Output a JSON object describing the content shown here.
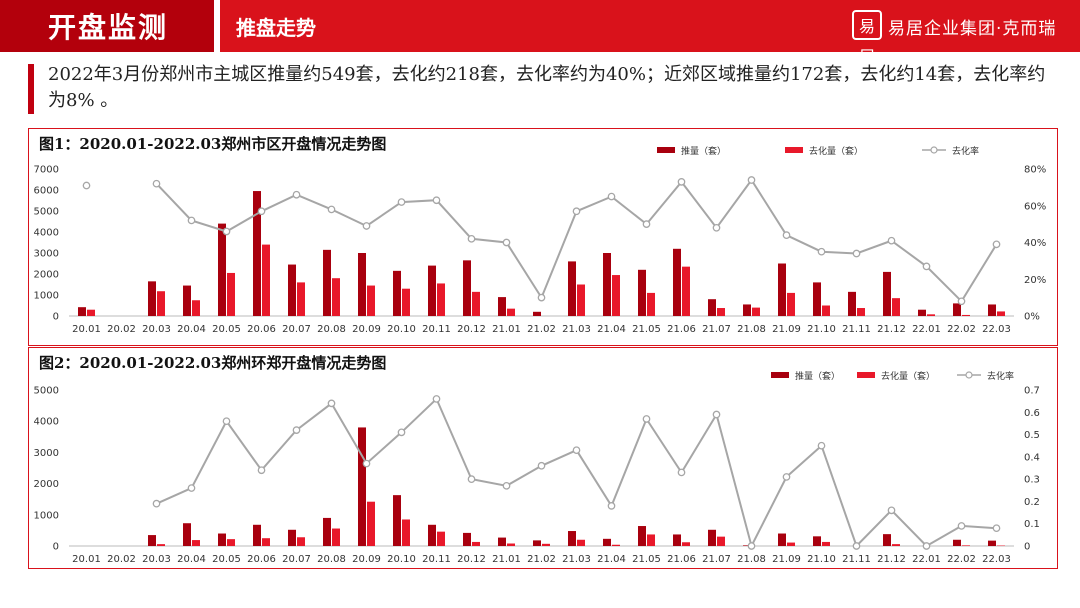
{
  "header": {
    "title": "开盘监测",
    "subtitle": "推盘走势",
    "logo_text": "易居企业集团·克而瑞",
    "logo_mark": "易居"
  },
  "summary": "2022年3月份郑州市主城区推量约549套，去化约218套，去化率约为40%；近郊区域推量约172套，去化约14套，去化率约为8% 。",
  "colors": {
    "supply": "#a8000e",
    "sold": "#e8182a",
    "rate": "#a6a6a6",
    "brand": "#d9121b"
  },
  "chart_data": [
    {
      "type": "bar",
      "title": "图1：2020.01-2022.03郑州市区开盘情况走势图",
      "categories": [
        "20.01",
        "20.02",
        "20.03",
        "20.04",
        "20.05",
        "20.06",
        "20.07",
        "20.08",
        "20.09",
        "20.10",
        "20.11",
        "20.12",
        "21.01",
        "21.02",
        "21.03",
        "21.04",
        "21.05",
        "21.06",
        "21.07",
        "21.08",
        "21.09",
        "21.10",
        "21.11",
        "21.12",
        "22.01",
        "22.02",
        "22.03"
      ],
      "series": [
        {
          "name": "推量（套）",
          "axis": "left",
          "values": [
            420,
            0,
            1650,
            1450,
            4400,
            5950,
            2450,
            3150,
            3000,
            2150,
            2400,
            2650,
            900,
            200,
            2600,
            3000,
            2200,
            3200,
            800,
            550,
            2500,
            1600,
            1150,
            2100,
            300,
            600,
            549
          ]
        },
        {
          "name": "去化量（套）",
          "axis": "left",
          "values": [
            300,
            0,
            1180,
            750,
            2050,
            3400,
            1600,
            1800,
            1450,
            1300,
            1550,
            1150,
            350,
            0,
            1500,
            1950,
            1100,
            2350,
            380,
            400,
            1100,
            500,
            380,
            850,
            80,
            50,
            218
          ]
        },
        {
          "name": "去化率",
          "axis": "right",
          "type": "line",
          "values": [
            0.71,
            null,
            0.72,
            0.52,
            0.46,
            0.57,
            0.66,
            0.58,
            0.49,
            0.62,
            0.63,
            0.42,
            0.4,
            0.1,
            0.57,
            0.65,
            0.5,
            0.73,
            0.48,
            0.74,
            0.44,
            0.35,
            0.34,
            0.41,
            0.27,
            0.08,
            0.39
          ]
        }
      ],
      "y_left": {
        "min": 0,
        "max": 7000,
        "ticks": [
          0,
          1000,
          2000,
          3000,
          4000,
          5000,
          6000,
          7000
        ]
      },
      "y_right": {
        "min": 0,
        "max": 0.8,
        "ticks": [
          "0%",
          "20%",
          "40%",
          "60%",
          "80%"
        ]
      },
      "legend": "top-right",
      "grid": false
    },
    {
      "type": "bar",
      "title": "图2：2020.01-2022.03郑州环郑开盘情况走势图",
      "categories": [
        "20.01",
        "20.02",
        "20.03",
        "20.04",
        "20.05",
        "20.06",
        "20.07",
        "20.08",
        "20.09",
        "20.10",
        "20.11",
        "20.12",
        "21.01",
        "21.02",
        "21.03",
        "21.04",
        "21.05",
        "21.06",
        "21.07",
        "21.08",
        "21.09",
        "21.10",
        "21.11",
        "21.12",
        "22.01",
        "22.02",
        "22.03"
      ],
      "series": [
        {
          "name": "推量（套）",
          "axis": "left",
          "values": [
            0,
            0,
            350,
            730,
            400,
            680,
            520,
            900,
            3800,
            1630,
            680,
            420,
            270,
            180,
            480,
            230,
            640,
            370,
            520,
            20,
            400,
            310,
            0,
            380,
            0,
            200,
            172
          ]
        },
        {
          "name": "去化量（套）",
          "axis": "left",
          "values": [
            0,
            0,
            60,
            190,
            220,
            250,
            280,
            560,
            1420,
            850,
            460,
            130,
            80,
            70,
            200,
            40,
            370,
            120,
            300,
            0,
            110,
            130,
            0,
            60,
            0,
            20,
            14
          ]
        },
        {
          "name": "去化率",
          "axis": "right",
          "type": "line",
          "values": [
            null,
            null,
            0.19,
            0.26,
            0.56,
            0.34,
            0.52,
            0.64,
            0.37,
            0.51,
            0.66,
            0.3,
            0.27,
            0.36,
            0.43,
            0.18,
            0.57,
            0.33,
            0.59,
            0.0,
            0.31,
            0.45,
            0.0,
            0.16,
            0.0,
            0.09,
            0.08
          ]
        }
      ],
      "y_left": {
        "min": 0,
        "max": 5000,
        "ticks": [
          0,
          1000,
          2000,
          3000,
          4000,
          5000
        ]
      },
      "y_right": {
        "min": 0,
        "max": 0.7,
        "ticks": [
          "0",
          "0.1",
          "0.2",
          "0.3",
          "0.4",
          "0.5",
          "0.6",
          "0.7"
        ]
      },
      "legend": "top-right",
      "grid": false
    }
  ]
}
